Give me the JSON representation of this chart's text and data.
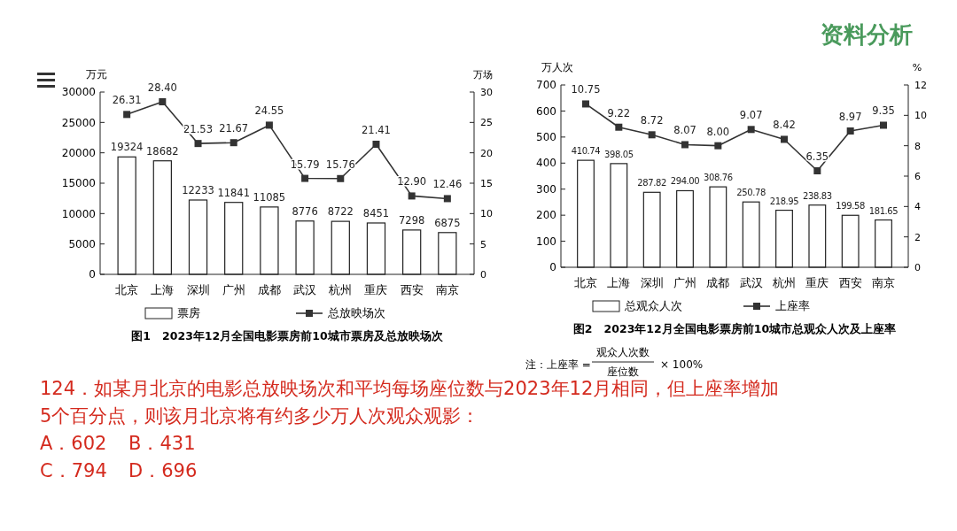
{
  "chart_data": [
    {
      "type": "bar",
      "title": "图1　2023年12月全国电影票房前10城市票房及总放映场次",
      "categories": [
        "北京",
        "上海",
        "深圳",
        "广州",
        "成都",
        "武汉",
        "杭州",
        "重庆",
        "西安",
        "南京"
      ],
      "ylabel": "万元",
      "y2label": "万场",
      "ylim": [
        0,
        30000
      ],
      "yticks": [
        0,
        5000,
        10000,
        15000,
        20000,
        25000,
        30000
      ],
      "y2lim": [
        0,
        30
      ],
      "y2ticks": [
        0,
        5,
        10,
        15,
        20,
        25,
        30
      ],
      "legend": "bottom",
      "marker": "square",
      "line_style": "solid",
      "grid": false,
      "series": [
        {
          "name": "票房",
          "type": "bar",
          "color": "#ffffff",
          "values": [
            19324,
            18682,
            12233,
            11841,
            11085,
            8776,
            8722,
            8451,
            7298,
            6875
          ],
          "value_labels": [
            "19324",
            "18682",
            "12233",
            "11841",
            "11085",
            "8776",
            "8722",
            "8451",
            "7298",
            "6875"
          ]
        },
        {
          "name": "总放映场次",
          "type": "line",
          "axis": "y2",
          "color": "#333333",
          "values": [
            26.31,
            28.4,
            21.53,
            21.67,
            24.55,
            15.79,
            15.76,
            21.41,
            12.9,
            12.46
          ],
          "value_labels": [
            "26.31",
            "28.40",
            "21.53",
            "21.67",
            "24.55",
            "15.79",
            "15.76",
            "21.41",
            "12.90",
            "12.46"
          ]
        }
      ]
    },
    {
      "type": "bar",
      "title": "图2　2023年12月全国电影票房前10城市总观众人次及上座率",
      "categories": [
        "北京",
        "上海",
        "深圳",
        "广州",
        "成都",
        "武汉",
        "杭州",
        "重庆",
        "西安",
        "南京"
      ],
      "ylabel": "万人次",
      "y2label": "%",
      "ylim": [
        0,
        700
      ],
      "yticks": [
        0,
        100,
        200,
        300,
        400,
        500,
        600,
        700
      ],
      "y2lim": [
        0,
        12
      ],
      "y2ticks": [
        0,
        2,
        4,
        6,
        8,
        10,
        12
      ],
      "legend": "bottom",
      "marker": "square",
      "line_style": "solid",
      "grid": false,
      "annotations": [
        "注：上座率 =",
        "观众人次数",
        "座位数",
        "× 100%"
      ],
      "series": [
        {
          "name": "总观众人次",
          "type": "bar",
          "color": "#ffffff",
          "values": [
            410.74,
            398.05,
            287.82,
            294.0,
            308.76,
            250.78,
            218.95,
            238.83,
            199.58,
            181.65
          ],
          "value_labels": [
            "410.74",
            "398.05",
            "287.82",
            "294.00",
            "308.76",
            "250.78",
            "218.95",
            "238.83",
            "199.58",
            "181.65"
          ]
        },
        {
          "name": "上座率",
          "type": "line",
          "axis": "y2",
          "color": "#333333",
          "values": [
            10.75,
            9.22,
            8.72,
            8.07,
            8.0,
            9.07,
            8.42,
            6.35,
            8.97,
            9.35
          ],
          "value_labels": [
            "10.75",
            "9.22",
            "8.72",
            "8.07",
            "8.00",
            "9.07",
            "8.42",
            "6.35",
            "8.97",
            "9.35"
          ]
        }
      ]
    },
    {
      "type": "other",
      "title": "资料分析",
      "annotations": [
        "124．如某月北京的电影总放映场次和平均每场座位数与2023年12月相同，但上座率增加",
        "5个百分点，则该月北京将有约多少万人次观众观影：",
        "A．602",
        "B．431",
        "C．794",
        "D．696"
      ]
    }
  ]
}
